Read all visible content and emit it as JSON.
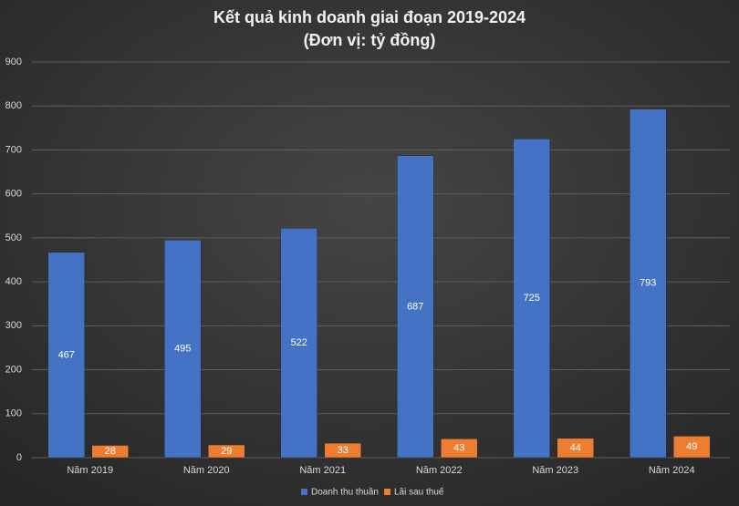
{
  "chart_data": {
    "type": "bar",
    "title": "Kết quả kinh doanh giai đoạn 2019-2024",
    "subtitle": "(Đơn vị: tỷ đồng)",
    "categories": [
      "Năm 2019",
      "Năm 2020",
      "Năm 2021",
      "Năm 2022",
      "Năm 2023",
      "Năm 2024"
    ],
    "series": [
      {
        "name": "Doanh thu thuần",
        "color": "#4472c4",
        "values": [
          467,
          495,
          522,
          687,
          725,
          793
        ]
      },
      {
        "name": "Lãi sau thuế",
        "color": "#ed7d31",
        "values": [
          28,
          29,
          33,
          43,
          44,
          49
        ]
      }
    ],
    "ylim": [
      0,
      900
    ],
    "yticks": [
      0,
      100,
      200,
      300,
      400,
      500,
      600,
      700,
      800,
      900
    ],
    "grid": true,
    "legend": "bottom"
  }
}
